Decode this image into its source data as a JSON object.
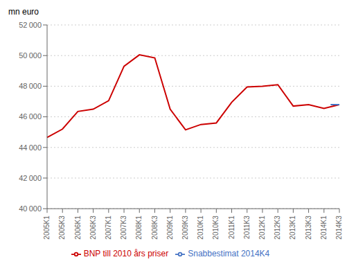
{
  "chart_data": {
    "type": "line",
    "ylabel": "mn euro",
    "categories": [
      "2005K1",
      "2005K3",
      "2006K1",
      "2006K3",
      "2007K1",
      "2007K3",
      "2008K1",
      "2008K3",
      "2009K1",
      "2009K3",
      "2010K1",
      "2010K3",
      "2011K1",
      "2011K3",
      "2012K1",
      "2012K3",
      "2013K1",
      "2013K3",
      "2014K1",
      "2014K3"
    ],
    "series": [
      {
        "name": "BNP till 2010 års priser",
        "color": "#cc0000",
        "values": [
          44650,
          45200,
          46350,
          46500,
          47050,
          49300,
          50050,
          49850,
          46500,
          45150,
          45500,
          45600,
          46950,
          47950,
          48000,
          48100,
          46700,
          46800,
          46550,
          46800
        ]
      },
      {
        "name": "Snabbestimat 2014K4",
        "color": "#4472c4",
        "marker": "dash",
        "values": [
          null,
          null,
          null,
          null,
          null,
          null,
          null,
          null,
          null,
          null,
          null,
          null,
          null,
          null,
          null,
          null,
          null,
          null,
          null,
          46800
        ]
      }
    ],
    "ylim": [
      40000,
      52000
    ],
    "yticks": [
      {
        "value": 40000,
        "label": "40 000"
      },
      {
        "value": 42000,
        "label": "42 000"
      },
      {
        "value": 44000,
        "label": "44 000"
      },
      {
        "value": 46000,
        "label": "46 000"
      },
      {
        "value": 48000,
        "label": "48 000"
      },
      {
        "value": 50000,
        "label": "50 000"
      },
      {
        "value": 52000,
        "label": "52 000"
      }
    ],
    "grid": true,
    "legend": "bottom"
  }
}
